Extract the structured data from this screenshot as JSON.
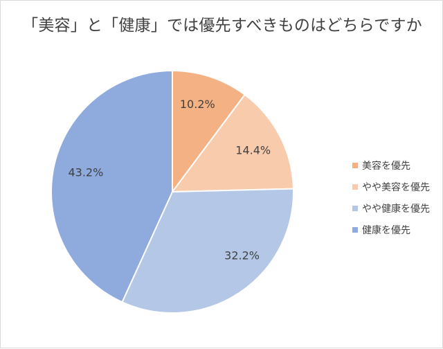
{
  "chart_data": {
    "type": "pie",
    "title": "「美容」と「健康」では優先すべきものはどちらですか",
    "categories": [
      "美容を優先",
      "やや美容を優先",
      "やや健康を優先",
      "健康を優先"
    ],
    "values": [
      10.2,
      14.4,
      32.2,
      43.2
    ],
    "value_labels": [
      "10.2%",
      "14.4%",
      "32.2%",
      "43.2%"
    ],
    "colors": [
      "#f4b183",
      "#f8cbad",
      "#b4c7e7",
      "#8faadc"
    ],
    "start": "12 o'clock",
    "direction": "clockwise",
    "legend_position": "right"
  }
}
